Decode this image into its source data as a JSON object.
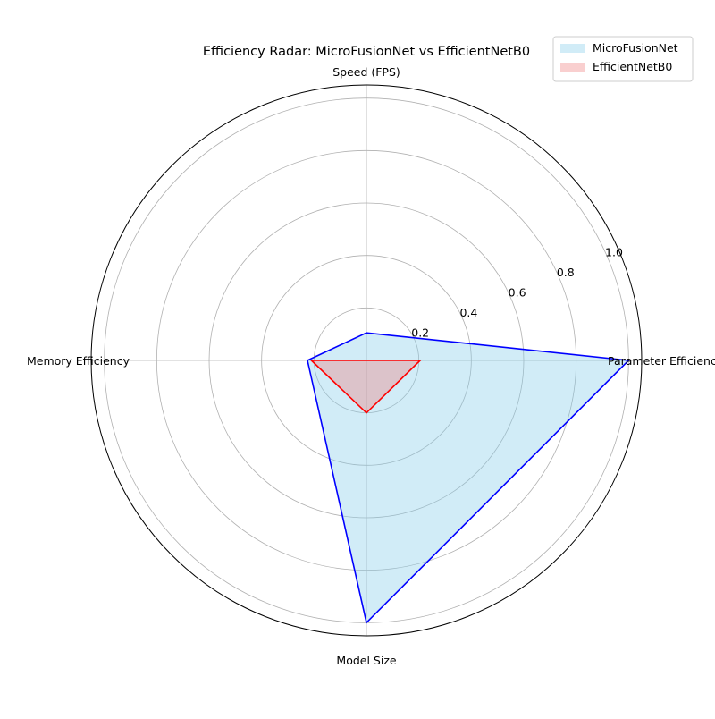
{
  "chart_data": {
    "type": "radar",
    "title": "Efficiency Radar: MicroFusionNet vs EfficientNetB0",
    "axes": [
      "Parameter Efficiency",
      "Speed (FPS)",
      "Memory Efficiency",
      "Model Size"
    ],
    "rlim": [
      0,
      1.05
    ],
    "r_ticks": [
      "0.2",
      "0.4",
      "0.6",
      "0.8",
      "1.0"
    ],
    "r_tick_values": [
      0.2,
      0.4,
      0.6,
      0.8,
      1.0
    ],
    "grid": true,
    "legend_position": "top-right",
    "series": [
      {
        "name": "MicroFusionNet",
        "values": [
          1.0,
          0.105,
          0.225,
          1.0
        ],
        "line_color": "#0000ff",
        "fill_color": "#87ceeb"
      },
      {
        "name": "EfficientNetB0",
        "values": [
          0.205,
          0.0,
          0.21,
          0.2
        ],
        "line_color": "#ff0000",
        "fill_color": "#f08080"
      }
    ]
  }
}
